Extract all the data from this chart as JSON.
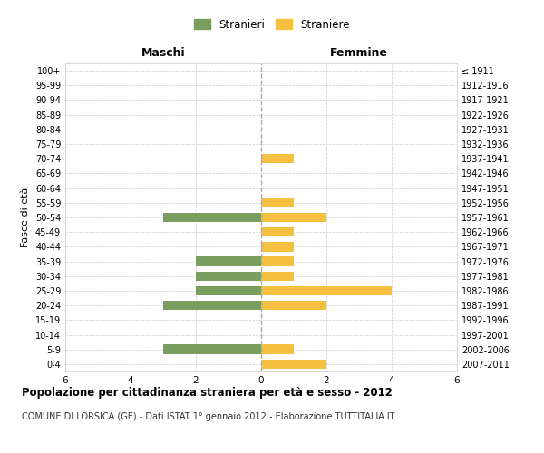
{
  "age_groups": [
    "0-4",
    "5-9",
    "10-14",
    "15-19",
    "20-24",
    "25-29",
    "30-34",
    "35-39",
    "40-44",
    "45-49",
    "50-54",
    "55-59",
    "60-64",
    "65-69",
    "70-74",
    "75-79",
    "80-84",
    "85-89",
    "90-94",
    "95-99",
    "100+"
  ],
  "birth_years": [
    "2007-2011",
    "2002-2006",
    "1997-2001",
    "1992-1996",
    "1987-1991",
    "1982-1986",
    "1977-1981",
    "1972-1976",
    "1967-1971",
    "1962-1966",
    "1957-1961",
    "1952-1956",
    "1947-1951",
    "1942-1946",
    "1937-1941",
    "1932-1936",
    "1927-1931",
    "1922-1926",
    "1917-1921",
    "1912-1916",
    "≤ 1911"
  ],
  "maschi": [
    0,
    3,
    0,
    0,
    3,
    2,
    2,
    2,
    0,
    0,
    3,
    0,
    0,
    0,
    0,
    0,
    0,
    0,
    0,
    0,
    0
  ],
  "femmine": [
    2,
    1,
    0,
    0,
    2,
    4,
    1,
    1,
    1,
    1,
    2,
    1,
    0,
    0,
    1,
    0,
    0,
    0,
    0,
    0,
    0
  ],
  "maschi_color": "#7a9e5e",
  "femmine_color": "#f5c040",
  "title": "Popolazione per cittadinanza straniera per età e sesso - 2012",
  "subtitle": "COMUNE DI LORSICA (GE) - Dati ISTAT 1° gennaio 2012 - Elaborazione TUTTITALIA.IT",
  "ylabel_left": "Fasce di età",
  "header_left": "Maschi",
  "header_right": "Femmine",
  "legend_maschi": "Stranieri",
  "legend_femmine": "Straniere",
  "xlim": 6,
  "background_color": "#ffffff",
  "grid_color": "#cccccc",
  "bar_height": 0.65,
  "dashed_line_color": "#aaaaaa"
}
